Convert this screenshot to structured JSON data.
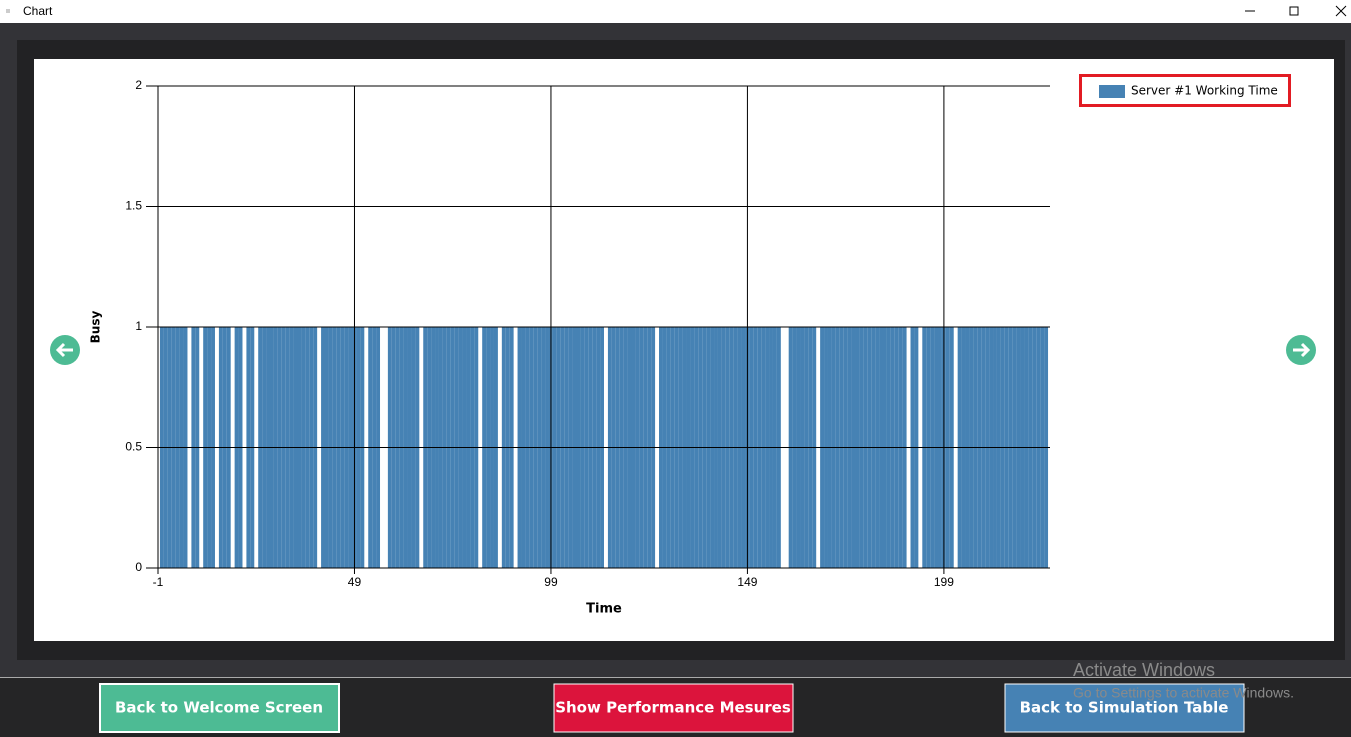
{
  "window": {
    "title": "Chart"
  },
  "chart_data": {
    "type": "bar",
    "xlabel": "Time",
    "ylabel": "Busy",
    "legend_position": "top-right",
    "grid": true,
    "xlim": [
      -1,
      226
    ],
    "ylim": [
      0,
      2
    ],
    "xticks": [
      -1,
      49,
      99,
      149,
      199
    ],
    "yticks": [
      0,
      0.5,
      1,
      1.5,
      2
    ],
    "series": [
      {
        "name": "Server #1 Working Time",
        "color": "#4682b4",
        "x": [
          0,
          1,
          2,
          3,
          4,
          5,
          6,
          7,
          8,
          9,
          10,
          11,
          12,
          13,
          14,
          15,
          16,
          17,
          18,
          19,
          20,
          21,
          22,
          23,
          24,
          25,
          26,
          27,
          28,
          29,
          30,
          31,
          32,
          33,
          34,
          35,
          36,
          37,
          38,
          39,
          40,
          41,
          42,
          43,
          44,
          45,
          46,
          47,
          48,
          49,
          50,
          51,
          52,
          53,
          54,
          55,
          56,
          57,
          58,
          59,
          60,
          61,
          62,
          63,
          64,
          65,
          66,
          67,
          68,
          69,
          70,
          71,
          72,
          73,
          74,
          75,
          76,
          77,
          78,
          79,
          80,
          81,
          82,
          83,
          84,
          85,
          86,
          87,
          88,
          89,
          90,
          91,
          92,
          93,
          94,
          95,
          96,
          97,
          98,
          99,
          100,
          101,
          102,
          103,
          104,
          105,
          106,
          107,
          108,
          109,
          110,
          111,
          112,
          113,
          114,
          115,
          116,
          117,
          118,
          119,
          120,
          121,
          122,
          123,
          124,
          125,
          126,
          127,
          128,
          129,
          130,
          131,
          132,
          133,
          134,
          135,
          136,
          137,
          138,
          139,
          140,
          141,
          142,
          143,
          144,
          145,
          146,
          147,
          148,
          149,
          150,
          151,
          152,
          153,
          154,
          155,
          156,
          157,
          158,
          159,
          160,
          161,
          162,
          163,
          164,
          165,
          166,
          167,
          168,
          169,
          170,
          171,
          172,
          173,
          174,
          175,
          176,
          177,
          178,
          179,
          180,
          181,
          182,
          183,
          184,
          185,
          186,
          187,
          188,
          189,
          190,
          191,
          192,
          193,
          194,
          195,
          196,
          197,
          198,
          199,
          200,
          201,
          202,
          203,
          204,
          205,
          206,
          207,
          208,
          209,
          210,
          211,
          212,
          213,
          214,
          215,
          216,
          217,
          218,
          219,
          220,
          221,
          222,
          223,
          224,
          225
        ],
        "values": [
          1,
          1,
          1,
          1,
          1,
          1,
          1,
          0,
          1,
          1,
          0,
          1,
          1,
          1,
          0,
          1,
          1,
          1,
          0,
          1,
          1,
          0,
          1,
          1,
          0,
          1,
          1,
          1,
          1,
          1,
          1,
          1,
          1,
          1,
          1,
          1,
          1,
          1,
          1,
          1,
          0,
          1,
          1,
          1,
          1,
          1,
          1,
          1,
          1,
          1,
          1,
          1,
          0,
          1,
          1,
          1,
          0,
          0,
          1,
          1,
          1,
          1,
          1,
          1,
          1,
          1,
          0,
          1,
          1,
          1,
          1,
          1,
          1,
          1,
          1,
          1,
          1,
          1,
          1,
          1,
          1,
          0,
          1,
          1,
          1,
          1,
          0,
          1,
          1,
          1,
          0,
          1,
          1,
          1,
          1,
          1,
          1,
          1,
          1,
          1,
          1,
          1,
          1,
          1,
          1,
          1,
          1,
          1,
          1,
          1,
          1,
          1,
          1,
          0,
          1,
          1,
          1,
          1,
          1,
          1,
          1,
          1,
          1,
          1,
          1,
          1,
          0,
          1,
          1,
          1,
          1,
          1,
          1,
          1,
          1,
          1,
          1,
          1,
          1,
          1,
          1,
          1,
          1,
          1,
          1,
          1,
          1,
          1,
          1,
          1,
          1,
          1,
          1,
          1,
          1,
          1,
          1,
          1,
          0,
          0,
          1,
          1,
          1,
          1,
          1,
          1,
          1,
          0,
          1,
          1,
          1,
          1,
          1,
          1,
          1,
          1,
          1,
          1,
          1,
          1,
          1,
          1,
          1,
          1,
          1,
          1,
          1,
          1,
          1,
          1,
          0,
          1,
          1,
          0,
          1,
          1,
          1,
          1,
          1,
          1,
          1,
          1,
          0,
          1,
          1,
          1,
          1,
          1,
          1,
          1,
          1,
          1,
          1,
          1,
          1,
          1,
          1,
          1,
          1,
          1,
          1,
          1,
          1,
          1,
          1,
          1
        ]
      }
    ]
  },
  "buttons": [
    "Back to Welcome Screen",
    "Show Performance Mesures",
    "Back to Simulation Table"
  ],
  "watermark": {
    "title": "Activate Windows",
    "text": "Go to Settings to activate Windows."
  }
}
